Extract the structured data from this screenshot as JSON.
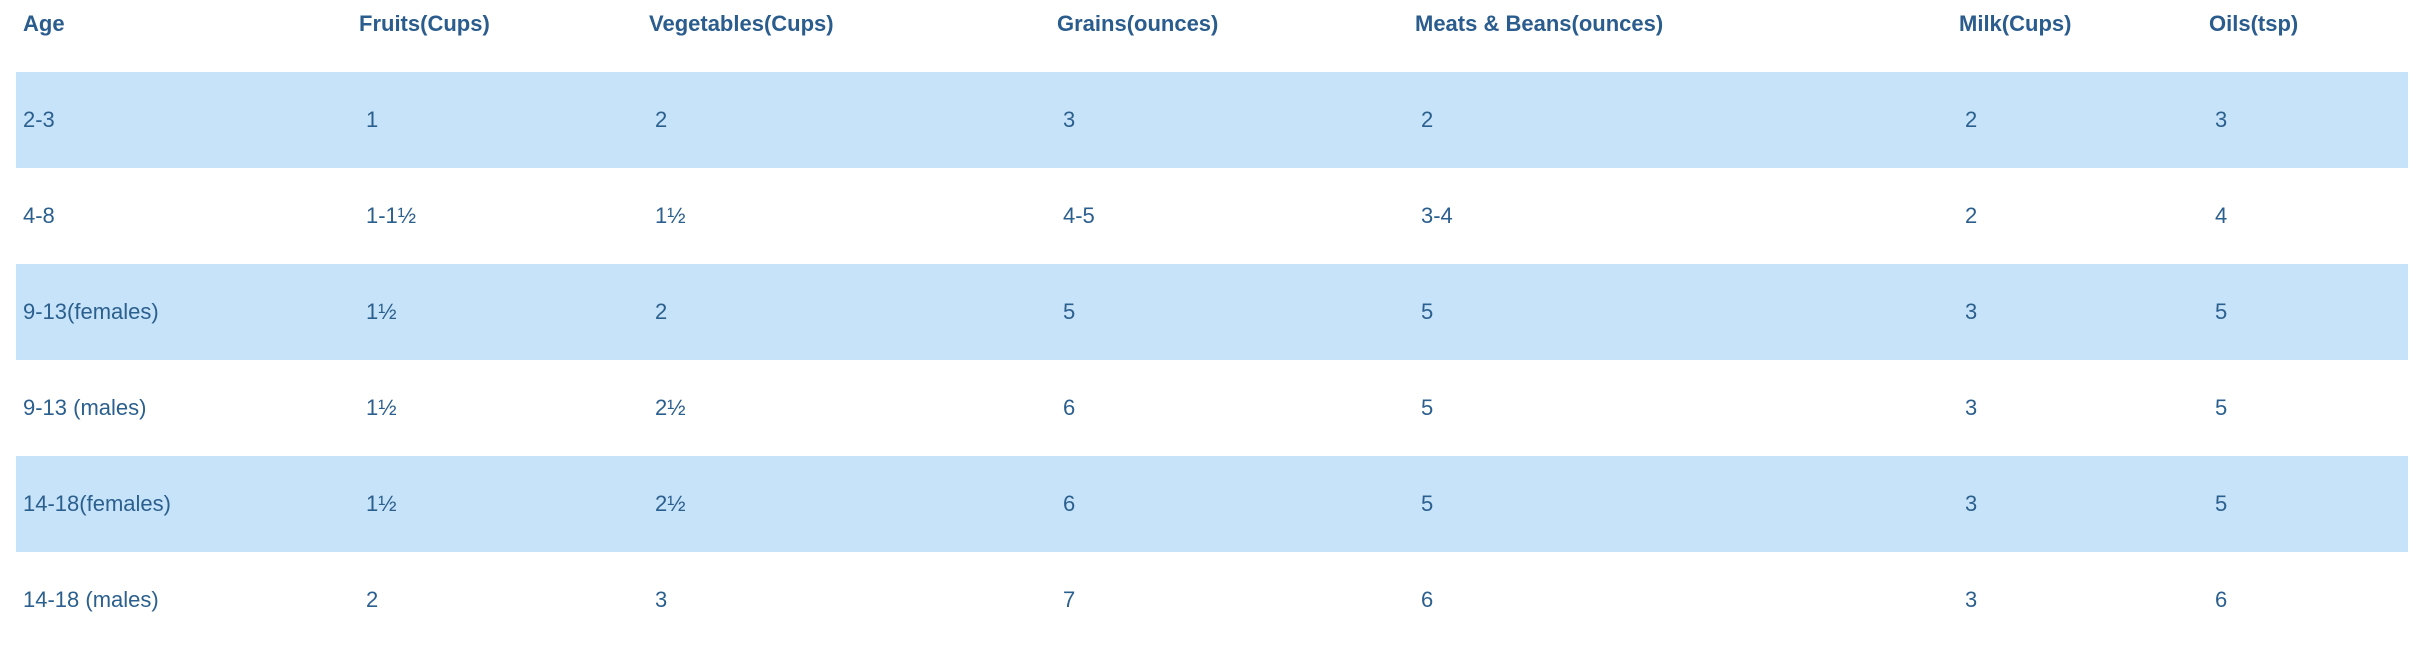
{
  "table": {
    "headers": [
      "Age",
      "Fruits(Cups)",
      "Vegetables(Cups)",
      "Grains(ounces)",
      "Meats & Beans(ounces)",
      "Milk(Cups)",
      "Oils(tsp)"
    ],
    "rows": [
      [
        "2-3",
        "1",
        "2",
        "3",
        "2",
        "2",
        "3"
      ],
      [
        "4-8",
        "1-1½",
        "1½",
        "4-5",
        "3-4",
        "2",
        "4"
      ],
      [
        "9-13(females)",
        "1½",
        "2",
        "5",
        "5",
        "3",
        "5"
      ],
      [
        "9-13 (males)",
        "1½",
        "2½",
        "6",
        "5",
        "3",
        "5"
      ],
      [
        "14-18(females)",
        "1½",
        "2½",
        "6",
        "5",
        "3",
        "5"
      ],
      [
        "14-18 (males)",
        "2",
        "3",
        "7",
        "6",
        "3",
        "6"
      ]
    ]
  },
  "colors": {
    "text": "#2b5f8e",
    "header_text": "#2a5c8d",
    "row_shade": "#c6e3f9"
  }
}
